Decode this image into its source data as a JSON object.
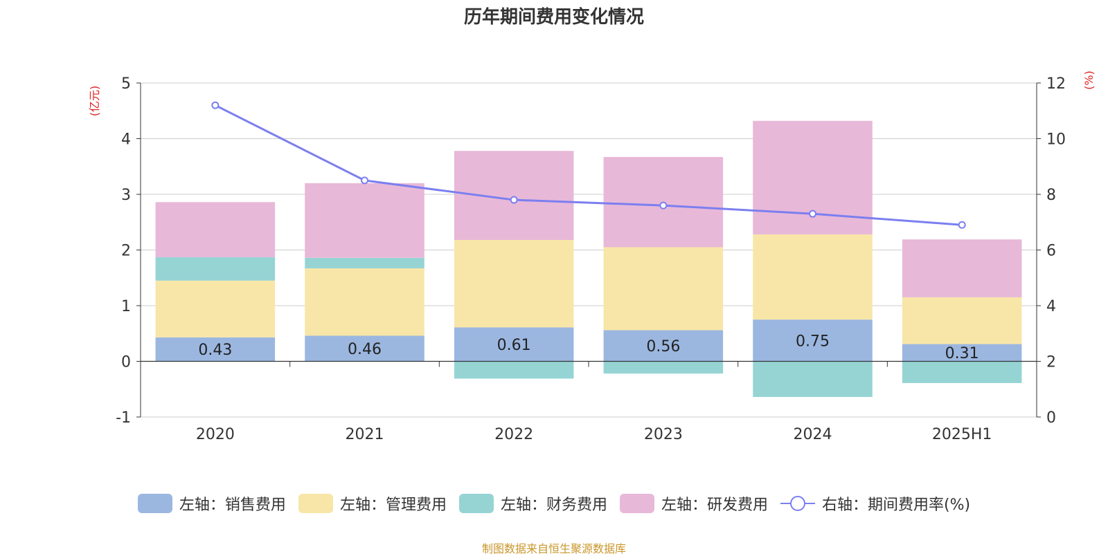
{
  "chart_data": {
    "type": "bar",
    "title": "历年期间费用变化情况",
    "categories": [
      "2020",
      "2021",
      "2022",
      "2023",
      "2024",
      "2025H1"
    ],
    "y_left": {
      "unit_label": "(亿元)",
      "range": [
        -1,
        5
      ],
      "ticks": [
        "-1",
        "0",
        "1",
        "2",
        "3",
        "4",
        "5"
      ]
    },
    "y_right": {
      "unit_label": "(%)",
      "range": [
        0,
        12
      ],
      "ticks": [
        "0",
        "2",
        "4",
        "6",
        "8",
        "10",
        "12"
      ]
    },
    "stacked": true,
    "grid": true,
    "legend_position": "bottom",
    "series": [
      {
        "name": "左轴：销售费用",
        "axis": "left",
        "type": "bar",
        "color": "#9bb7e0",
        "values": [
          0.43,
          0.46,
          0.61,
          0.56,
          0.75,
          0.31
        ],
        "show_labels": true
      },
      {
        "name": "左轴：管理费用",
        "axis": "left",
        "type": "bar",
        "color": "#f8e6a8",
        "values": [
          1.02,
          1.21,
          1.57,
          1.49,
          1.53,
          0.84
        ]
      },
      {
        "name": "左轴：财务费用",
        "axis": "left",
        "type": "bar",
        "color": "#96d4d4",
        "values": [
          0.42,
          0.19,
          -0.31,
          -0.22,
          -0.64,
          -0.39
        ]
      },
      {
        "name": "左轴：研发费用",
        "axis": "left",
        "type": "bar",
        "color": "#e8b8d8",
        "values": [
          0.99,
          1.34,
          1.6,
          1.62,
          2.04,
          1.04
        ]
      },
      {
        "name": "右轴：期间费用率(%)",
        "axis": "right",
        "type": "line",
        "color": "#7b7ff0",
        "values": [
          11.2,
          8.5,
          7.8,
          7.6,
          7.3,
          6.9
        ]
      }
    ],
    "source": "制图数据来自恒生聚源数据库"
  }
}
